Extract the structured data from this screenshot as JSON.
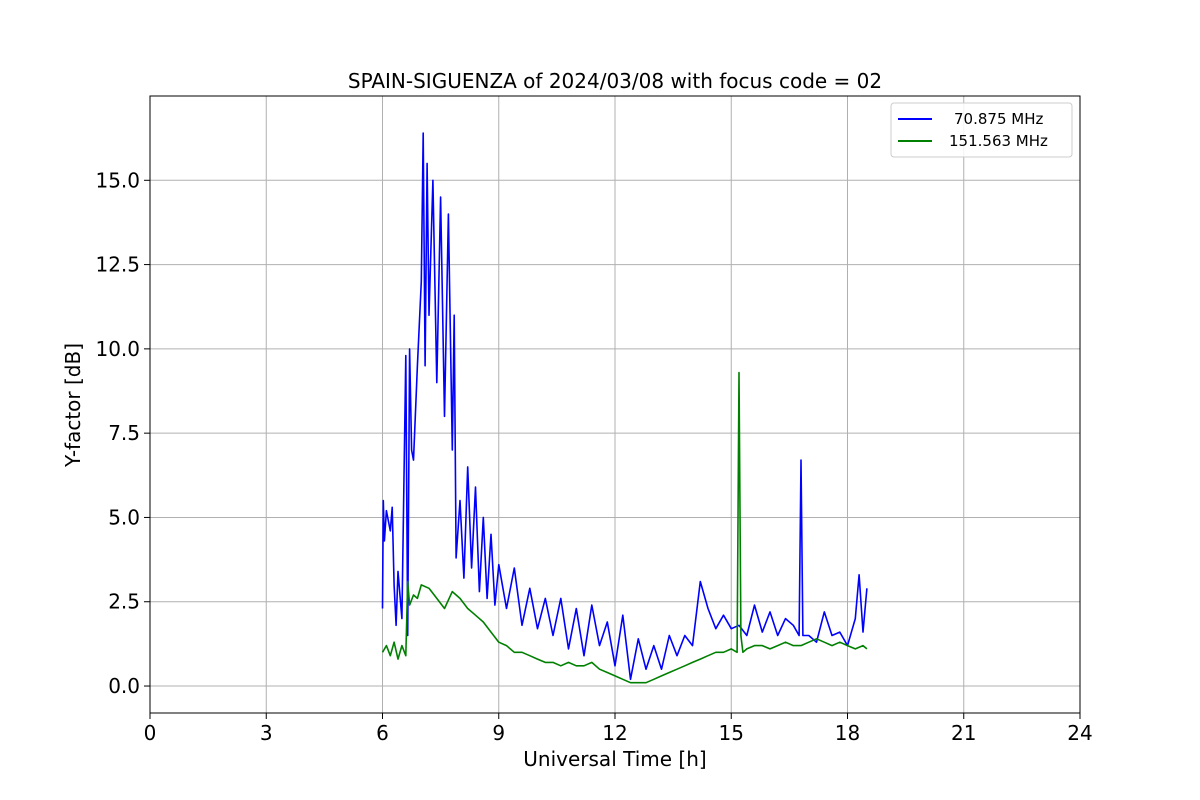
{
  "chart_data": {
    "type": "line",
    "title": "SPAIN-SIGUENZA of 2024/03/08 with focus code = 02",
    "xlabel": "Universal Time [h]",
    "ylabel": "Y-factor [dB]",
    "xlim": [
      0,
      24
    ],
    "ylim": [
      -0.8,
      17.5
    ],
    "xticks": [
      0,
      3,
      6,
      9,
      12,
      15,
      18,
      21,
      24
    ],
    "xtick_labels": [
      "0",
      "3",
      "6",
      "9",
      "12",
      "15",
      "18",
      "21",
      "24"
    ],
    "yticks": [
      0.0,
      2.5,
      5.0,
      7.5,
      10.0,
      12.5,
      15.0
    ],
    "ytick_labels": [
      "0.0",
      "2.5",
      "5.0",
      "7.5",
      "10.0",
      "12.5",
      "15.0"
    ],
    "grid": true,
    "legend_position": "top-right",
    "series": [
      {
        "name": "70.875 MHz",
        "color": "#0000ff",
        "x": [
          6.0,
          6.02,
          6.05,
          6.1,
          6.2,
          6.25,
          6.3,
          6.35,
          6.4,
          6.5,
          6.6,
          6.65,
          6.7,
          6.75,
          6.8,
          6.9,
          7.0,
          7.05,
          7.1,
          7.15,
          7.2,
          7.3,
          7.4,
          7.5,
          7.6,
          7.7,
          7.8,
          7.85,
          7.9,
          8.0,
          8.1,
          8.2,
          8.3,
          8.4,
          8.5,
          8.6,
          8.7,
          8.8,
          8.9,
          9.0,
          9.2,
          9.4,
          9.6,
          9.8,
          10.0,
          10.2,
          10.4,
          10.6,
          10.8,
          11.0,
          11.2,
          11.4,
          11.6,
          11.8,
          12.0,
          12.2,
          12.4,
          12.6,
          12.8,
          13.0,
          13.2,
          13.4,
          13.6,
          13.8,
          14.0,
          14.2,
          14.4,
          14.6,
          14.8,
          15.0,
          15.2,
          15.4,
          15.6,
          15.8,
          16.0,
          16.2,
          16.4,
          16.6,
          16.75,
          16.8,
          16.85,
          17.0,
          17.2,
          17.4,
          17.6,
          17.8,
          18.0,
          18.2,
          18.3,
          18.4,
          18.5
        ],
        "values": [
          2.3,
          5.5,
          4.3,
          5.2,
          4.6,
          5.3,
          3.0,
          1.8,
          3.4,
          2.0,
          9.8,
          1.5,
          10.0,
          7.0,
          6.7,
          9.5,
          12.0,
          16.4,
          9.5,
          15.5,
          11.0,
          15.0,
          9.0,
          14.5,
          8.0,
          14.0,
          7.0,
          11.0,
          3.8,
          5.5,
          3.2,
          6.5,
          3.5,
          5.9,
          2.8,
          5.0,
          2.6,
          4.5,
          2.4,
          3.6,
          2.3,
          3.5,
          1.8,
          2.9,
          1.7,
          2.6,
          1.5,
          2.6,
          1.1,
          2.3,
          0.9,
          2.4,
          1.2,
          1.9,
          0.6,
          2.1,
          0.2,
          1.4,
          0.5,
          1.2,
          0.5,
          1.5,
          0.9,
          1.5,
          1.2,
          3.1,
          2.3,
          1.7,
          2.1,
          1.7,
          1.8,
          1.5,
          2.4,
          1.6,
          2.2,
          1.5,
          2.0,
          1.8,
          1.5,
          6.7,
          1.5,
          1.5,
          1.3,
          2.2,
          1.5,
          1.6,
          1.2,
          2.0,
          3.3,
          1.6,
          2.9
        ]
      },
      {
        "name": "151.563 MHz",
        "color": "#008000",
        "x": [
          6.0,
          6.1,
          6.2,
          6.3,
          6.4,
          6.5,
          6.6,
          6.65,
          6.7,
          6.8,
          6.9,
          7.0,
          7.2,
          7.4,
          7.6,
          7.8,
          8.0,
          8.2,
          8.4,
          8.6,
          8.8,
          9.0,
          9.2,
          9.4,
          9.6,
          9.8,
          10.0,
          10.2,
          10.4,
          10.6,
          10.8,
          11.0,
          11.2,
          11.4,
          11.6,
          11.8,
          12.0,
          12.2,
          12.4,
          12.6,
          12.8,
          13.0,
          13.2,
          13.4,
          13.6,
          13.8,
          14.0,
          14.2,
          14.4,
          14.6,
          14.8,
          15.0,
          15.15,
          15.2,
          15.25,
          15.3,
          15.4,
          15.6,
          15.8,
          16.0,
          16.2,
          16.4,
          16.6,
          16.8,
          17.0,
          17.2,
          17.4,
          17.6,
          17.8,
          18.0,
          18.2,
          18.4,
          18.5
        ],
        "values": [
          1.0,
          1.2,
          0.9,
          1.3,
          0.8,
          1.2,
          0.9,
          3.1,
          2.4,
          2.7,
          2.6,
          3.0,
          2.9,
          2.6,
          2.3,
          2.8,
          2.6,
          2.3,
          2.1,
          1.9,
          1.6,
          1.3,
          1.2,
          1.0,
          1.0,
          0.9,
          0.8,
          0.7,
          0.7,
          0.6,
          0.7,
          0.6,
          0.6,
          0.7,
          0.5,
          0.4,
          0.3,
          0.2,
          0.1,
          0.1,
          0.1,
          0.2,
          0.3,
          0.4,
          0.5,
          0.6,
          0.7,
          0.8,
          0.9,
          1.0,
          1.0,
          1.1,
          1.0,
          9.3,
          1.5,
          1.0,
          1.1,
          1.2,
          1.2,
          1.1,
          1.2,
          1.3,
          1.2,
          1.2,
          1.3,
          1.4,
          1.3,
          1.2,
          1.3,
          1.2,
          1.1,
          1.2,
          1.1
        ]
      }
    ]
  }
}
